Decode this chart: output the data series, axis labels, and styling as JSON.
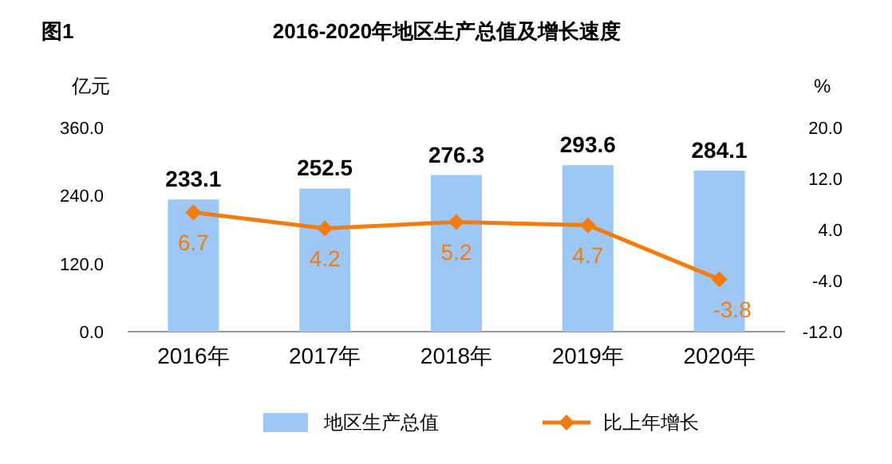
{
  "chart_data": {
    "type": "bar",
    "title": "2016-2020年地区生产总值及增长速度",
    "annotations": [
      "图1"
    ],
    "ylabel": "亿元",
    "y2label": "%",
    "categories": [
      "2016年",
      "2017年",
      "2018年",
      "2019年",
      "2020年"
    ],
    "series": [
      {
        "name": "地区生产总值",
        "color": "#9dc8f5",
        "values": [
          233.1,
          252.5,
          276.3,
          293.6,
          284.1
        ]
      },
      {
        "name": "比上年增长",
        "type": "line",
        "axis": "y2",
        "color": "#f47c0e",
        "marker": "diamond",
        "values": [
          6.7,
          4.2,
          5.2,
          4.7,
          -3.8
        ]
      }
    ],
    "ylim": [
      0,
      360
    ],
    "yticks": [
      {
        "value": 0,
        "label": "0.0"
      },
      {
        "value": 120,
        "label": "120.0"
      },
      {
        "value": 240,
        "label": "240.0"
      },
      {
        "value": 360,
        "label": "360.0"
      }
    ],
    "y2lim": [
      -12,
      20
    ],
    "y2ticks": [
      {
        "value": -12,
        "label": "-12.0"
      },
      {
        "value": -4,
        "label": "-4.0"
      },
      {
        "value": 4,
        "label": "4.0"
      },
      {
        "value": 12,
        "label": "12.0"
      },
      {
        "value": 20,
        "label": "20.0"
      }
    ],
    "data_labels": true,
    "grid": false,
    "legend": "bottom"
  }
}
